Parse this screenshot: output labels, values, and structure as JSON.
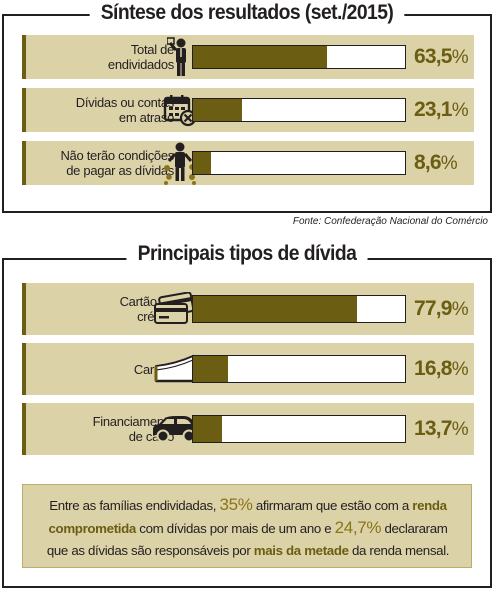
{
  "section1": {
    "title": "Síntese dos resultados (set./2015)"
  },
  "source": "Fonte: Confederação Nacional do Comércio",
  "section2": {
    "title": "Principais tipos de dívida"
  },
  "colors": {
    "accent": "#6b5d12",
    "band": "#dcd2a8",
    "highlight": "#8a7516"
  },
  "chart_data": [
    {
      "type": "bar",
      "orientation": "horizontal",
      "title": "Síntese dos resultados (set./2015)",
      "categories": [
        "Total de endividados",
        "Dívidas ou contas em atraso",
        "Não terão condições de pagar as dívidas"
      ],
      "values": [
        63.5,
        23.1,
        8.6
      ],
      "labels": [
        "63,5",
        "23,1",
        "8,6"
      ],
      "label_lines": [
        [
          "Total de",
          "endividados"
        ],
        [
          "Dívidas ou contas",
          "em atraso"
        ],
        [
          "Não terão condições",
          "de pagar as dívidas"
        ]
      ],
      "icons": [
        "businessman-icon",
        "calendar-overdue-icon",
        "falling-coins-person-icon"
      ],
      "unit": "%",
      "xlim": [
        0,
        100
      ]
    },
    {
      "type": "bar",
      "orientation": "horizontal",
      "title": "Principais tipos de dívida",
      "categories": [
        "Cartão de crédito",
        "Carnês",
        "Financiamento de carro"
      ],
      "values": [
        77.9,
        16.8,
        13.7
      ],
      "labels": [
        "77,9",
        "16,8",
        "13,7"
      ],
      "label_lines": [
        [
          "Cartão de",
          "crédito"
        ],
        [
          "Carnês"
        ],
        [
          "Financiamento",
          "de carro"
        ]
      ],
      "icons": [
        "credit-cards-icon",
        "payment-booklet-icon",
        "car-icon"
      ],
      "unit": "%",
      "xlim": [
        0,
        100
      ]
    }
  ],
  "note": {
    "t1": "Entre as famílias endividadas, ",
    "n1": "35%",
    "t2": " afirmaram que estão com a ",
    "h1": "renda comprometida",
    "t3": " com dívidas por mais de um ano e ",
    "n2": "24,7%",
    "t4": " declararam que as dívidas são responsáveis por ",
    "h2": "mais da metade",
    "t5": " da renda mensal."
  }
}
